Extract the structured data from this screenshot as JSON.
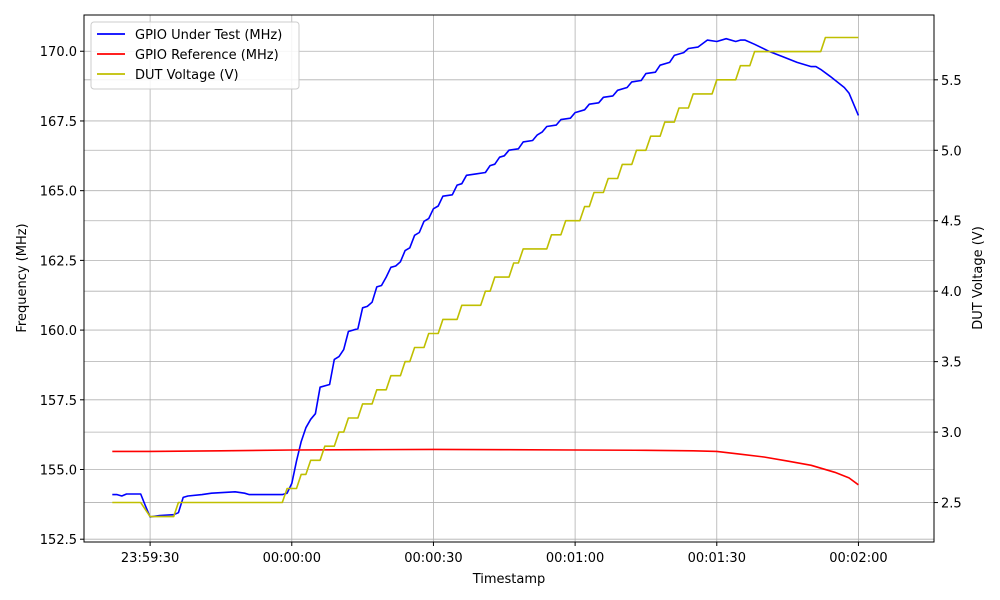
{
  "chart_data": {
    "type": "line",
    "title": "",
    "xlabel": "Timestamp",
    "ylabel_left": "Frequency (MHz)",
    "ylabel_right": "DUT Voltage (V)",
    "grid": true,
    "legend_position": "top-left",
    "x_unit": "time (HH:MM:SS)",
    "x_range": [
      "23:59:16",
      "00:02:16"
    ],
    "x_ticks": [
      {
        "t": "23:59:30",
        "label": "23:59:30"
      },
      {
        "t": "00:00:00",
        "label": "00:00:00"
      },
      {
        "t": "00:00:30",
        "label": "00:00:30"
      },
      {
        "t": "00:01:00",
        "label": "00:01:00"
      },
      {
        "t": "00:01:30",
        "label": "00:01:30"
      },
      {
        "t": "00:02:00",
        "label": "00:02:00"
      }
    ],
    "ylim_left": [
      152.4,
      171.3
    ],
    "yticks_left": [
      152.5,
      155.0,
      157.5,
      160.0,
      162.5,
      165.0,
      167.5,
      170.0
    ],
    "ytick_labels_left": [
      "152.5",
      "155.0",
      "157.5",
      "160.0",
      "162.5",
      "165.0",
      "167.5",
      "170.0"
    ],
    "ylim_right": [
      2.22,
      5.96
    ],
    "yticks_right": [
      2.5,
      3.0,
      3.5,
      4.0,
      4.5,
      5.0,
      5.5
    ],
    "ytick_labels_right": [
      "2.5",
      "3.0",
      "3.5",
      "4.0",
      "4.5",
      "5.0",
      "5.5"
    ],
    "series": [
      {
        "name": "GPIO Under Test (MHz)",
        "axis": "left",
        "color": "#0000ff",
        "points": [
          [
            "23:59:22",
            154.1
          ],
          [
            "23:59:23",
            154.1
          ],
          [
            "23:59:24",
            154.05
          ],
          [
            "23:59:25",
            154.12
          ],
          [
            "23:59:28",
            154.12
          ],
          [
            "23:59:29",
            153.7
          ],
          [
            "23:59:30",
            153.3
          ],
          [
            "23:59:32",
            153.35
          ],
          [
            "23:59:35",
            153.38
          ],
          [
            "23:59:36",
            153.45
          ],
          [
            "23:59:37",
            154.0
          ],
          [
            "23:59:38",
            154.05
          ],
          [
            "23:59:41",
            154.1
          ],
          [
            "23:59:43",
            154.15
          ],
          [
            "23:59:48",
            154.2
          ],
          [
            "23:59:50",
            154.15
          ],
          [
            "23:59:51",
            154.1
          ],
          [
            "23:59:58",
            154.1
          ],
          [
            "23:59:59",
            154.15
          ],
          [
            "00:00:00",
            154.5
          ],
          [
            "00:00:01",
            155.3
          ],
          [
            "00:00:02",
            156.0
          ],
          [
            "00:00:03",
            156.5
          ],
          [
            "00:00:04",
            156.8
          ],
          [
            "00:00:05",
            157.0
          ],
          [
            "00:00:06",
            157.95
          ],
          [
            "00:00:08",
            158.05
          ],
          [
            "00:00:09",
            158.95
          ],
          [
            "00:00:10",
            159.05
          ],
          [
            "00:00:11",
            159.3
          ],
          [
            "00:00:12",
            159.95
          ],
          [
            "00:00:14",
            160.05
          ],
          [
            "00:00:15",
            160.8
          ],
          [
            "00:00:16",
            160.85
          ],
          [
            "00:00:17",
            161.0
          ],
          [
            "00:00:18",
            161.55
          ],
          [
            "00:00:19",
            161.6
          ],
          [
            "00:00:20",
            161.9
          ],
          [
            "00:00:21",
            162.25
          ],
          [
            "00:00:22",
            162.3
          ],
          [
            "00:00:23",
            162.45
          ],
          [
            "00:00:24",
            162.85
          ],
          [
            "00:00:25",
            162.95
          ],
          [
            "00:00:26",
            163.4
          ],
          [
            "00:00:27",
            163.5
          ],
          [
            "00:00:28",
            163.9
          ],
          [
            "00:00:29",
            164.0
          ],
          [
            "00:00:30",
            164.35
          ],
          [
            "00:00:31",
            164.45
          ],
          [
            "00:00:32",
            164.8
          ],
          [
            "00:00:34",
            164.85
          ],
          [
            "00:00:35",
            165.2
          ],
          [
            "00:00:36",
            165.25
          ],
          [
            "00:00:37",
            165.55
          ],
          [
            "00:00:39",
            165.6
          ],
          [
            "00:00:41",
            165.65
          ],
          [
            "00:00:42",
            165.9
          ],
          [
            "00:00:43",
            165.95
          ],
          [
            "00:00:44",
            166.2
          ],
          [
            "00:00:45",
            166.25
          ],
          [
            "00:00:46",
            166.45
          ],
          [
            "00:00:48",
            166.5
          ],
          [
            "00:00:49",
            166.75
          ],
          [
            "00:00:51",
            166.8
          ],
          [
            "00:00:52",
            167.0
          ],
          [
            "00:00:53",
            167.1
          ],
          [
            "00:00:54",
            167.3
          ],
          [
            "00:00:56",
            167.35
          ],
          [
            "00:00:57",
            167.55
          ],
          [
            "00:00:59",
            167.6
          ],
          [
            "00:01:00",
            167.8
          ],
          [
            "00:01:02",
            167.9
          ],
          [
            "00:01:03",
            168.1
          ],
          [
            "00:01:05",
            168.15
          ],
          [
            "00:01:06",
            168.35
          ],
          [
            "00:01:08",
            168.4
          ],
          [
            "00:01:09",
            168.6
          ],
          [
            "00:01:11",
            168.7
          ],
          [
            "00:01:12",
            168.9
          ],
          [
            "00:01:14",
            168.95
          ],
          [
            "00:01:15",
            169.2
          ],
          [
            "00:01:17",
            169.25
          ],
          [
            "00:01:18",
            169.5
          ],
          [
            "00:01:20",
            169.6
          ],
          [
            "00:01:21",
            169.85
          ],
          [
            "00:01:23",
            169.95
          ],
          [
            "00:01:24",
            170.1
          ],
          [
            "00:01:26",
            170.15
          ],
          [
            "00:01:28",
            170.4
          ],
          [
            "00:01:30",
            170.35
          ],
          [
            "00:01:32",
            170.45
          ],
          [
            "00:01:34",
            170.35
          ],
          [
            "00:01:35",
            170.4
          ],
          [
            "00:01:36",
            170.4
          ],
          [
            "00:01:38",
            170.25
          ],
          [
            "00:01:41",
            170.0
          ],
          [
            "00:01:44",
            169.8
          ],
          [
            "00:01:47",
            169.6
          ],
          [
            "00:01:50",
            169.45
          ],
          [
            "00:01:51",
            169.45
          ],
          [
            "00:01:52",
            169.35
          ],
          [
            "00:01:54",
            169.1
          ],
          [
            "00:01:57",
            168.7
          ],
          [
            "00:01:58",
            168.5
          ],
          [
            "00:02:00",
            167.7
          ]
        ]
      },
      {
        "name": "GPIO Reference (MHz)",
        "axis": "left",
        "color": "#ff0000",
        "points": [
          [
            "23:59:22",
            155.65
          ],
          [
            "23:59:30",
            155.65
          ],
          [
            "23:59:45",
            155.67
          ],
          [
            "00:00:00",
            155.7
          ],
          [
            "00:00:15",
            155.71
          ],
          [
            "00:00:30",
            155.72
          ],
          [
            "00:00:45",
            155.71
          ],
          [
            "00:01:00",
            155.7
          ],
          [
            "00:01:15",
            155.69
          ],
          [
            "00:01:25",
            155.67
          ],
          [
            "00:01:30",
            155.65
          ],
          [
            "00:01:35",
            155.55
          ],
          [
            "00:01:40",
            155.45
          ],
          [
            "00:01:45",
            155.3
          ],
          [
            "00:01:50",
            155.15
          ],
          [
            "00:01:55",
            154.9
          ],
          [
            "00:01:58",
            154.7
          ],
          [
            "00:02:00",
            154.45
          ]
        ]
      },
      {
        "name": "DUT Voltage (V)",
        "axis": "right",
        "color": "#bfbf00",
        "points": [
          [
            "23:59:22",
            2.5
          ],
          [
            "23:59:28",
            2.5
          ],
          [
            "23:59:30",
            2.4
          ],
          [
            "23:59:35",
            2.4
          ],
          [
            "23:59:36",
            2.5
          ],
          [
            "23:59:58",
            2.5
          ],
          [
            "23:59:59",
            2.6
          ],
          [
            "00:00:01",
            2.6
          ],
          [
            "00:00:02",
            2.7
          ],
          [
            "00:00:03",
            2.7
          ],
          [
            "00:00:04",
            2.8
          ],
          [
            "00:00:06",
            2.8
          ],
          [
            "00:00:07",
            2.9
          ],
          [
            "00:00:09",
            2.9
          ],
          [
            "00:00:10",
            3.0
          ],
          [
            "00:00:11",
            3.0
          ],
          [
            "00:00:12",
            3.1
          ],
          [
            "00:00:14",
            3.1
          ],
          [
            "00:00:15",
            3.2
          ],
          [
            "00:00:17",
            3.2
          ],
          [
            "00:00:18",
            3.3
          ],
          [
            "00:00:20",
            3.3
          ],
          [
            "00:00:21",
            3.4
          ],
          [
            "00:00:23",
            3.4
          ],
          [
            "00:00:24",
            3.5
          ],
          [
            "00:00:25",
            3.5
          ],
          [
            "00:00:26",
            3.6
          ],
          [
            "00:00:28",
            3.6
          ],
          [
            "00:00:29",
            3.7
          ],
          [
            "00:00:31",
            3.7
          ],
          [
            "00:00:32",
            3.8
          ],
          [
            "00:00:35",
            3.8
          ],
          [
            "00:00:36",
            3.9
          ],
          [
            "00:00:40",
            3.9
          ],
          [
            "00:00:41",
            4.0
          ],
          [
            "00:00:42",
            4.0
          ],
          [
            "00:00:43",
            4.1
          ],
          [
            "00:00:46",
            4.1
          ],
          [
            "00:00:47",
            4.2
          ],
          [
            "00:00:48",
            4.2
          ],
          [
            "00:00:49",
            4.3
          ],
          [
            "00:00:54",
            4.3
          ],
          [
            "00:00:55",
            4.4
          ],
          [
            "00:00:57",
            4.4
          ],
          [
            "00:00:58",
            4.5
          ],
          [
            "00:01:01",
            4.5
          ],
          [
            "00:01:02",
            4.6
          ],
          [
            "00:01:03",
            4.6
          ],
          [
            "00:01:04",
            4.7
          ],
          [
            "00:01:06",
            4.7
          ],
          [
            "00:01:07",
            4.8
          ],
          [
            "00:01:09",
            4.8
          ],
          [
            "00:01:10",
            4.9
          ],
          [
            "00:01:12",
            4.9
          ],
          [
            "00:01:13",
            5.0
          ],
          [
            "00:01:15",
            5.0
          ],
          [
            "00:01:16",
            5.1
          ],
          [
            "00:01:18",
            5.1
          ],
          [
            "00:01:19",
            5.2
          ],
          [
            "00:01:21",
            5.2
          ],
          [
            "00:01:22",
            5.3
          ],
          [
            "00:01:24",
            5.3
          ],
          [
            "00:01:25",
            5.4
          ],
          [
            "00:01:29",
            5.4
          ],
          [
            "00:01:30",
            5.5
          ],
          [
            "00:01:34",
            5.5
          ],
          [
            "00:01:35",
            5.6
          ],
          [
            "00:01:37",
            5.6
          ],
          [
            "00:01:38",
            5.7
          ],
          [
            "00:01:52",
            5.7
          ],
          [
            "00:01:53",
            5.8
          ],
          [
            "00:02:00",
            5.8
          ]
        ]
      }
    ]
  }
}
